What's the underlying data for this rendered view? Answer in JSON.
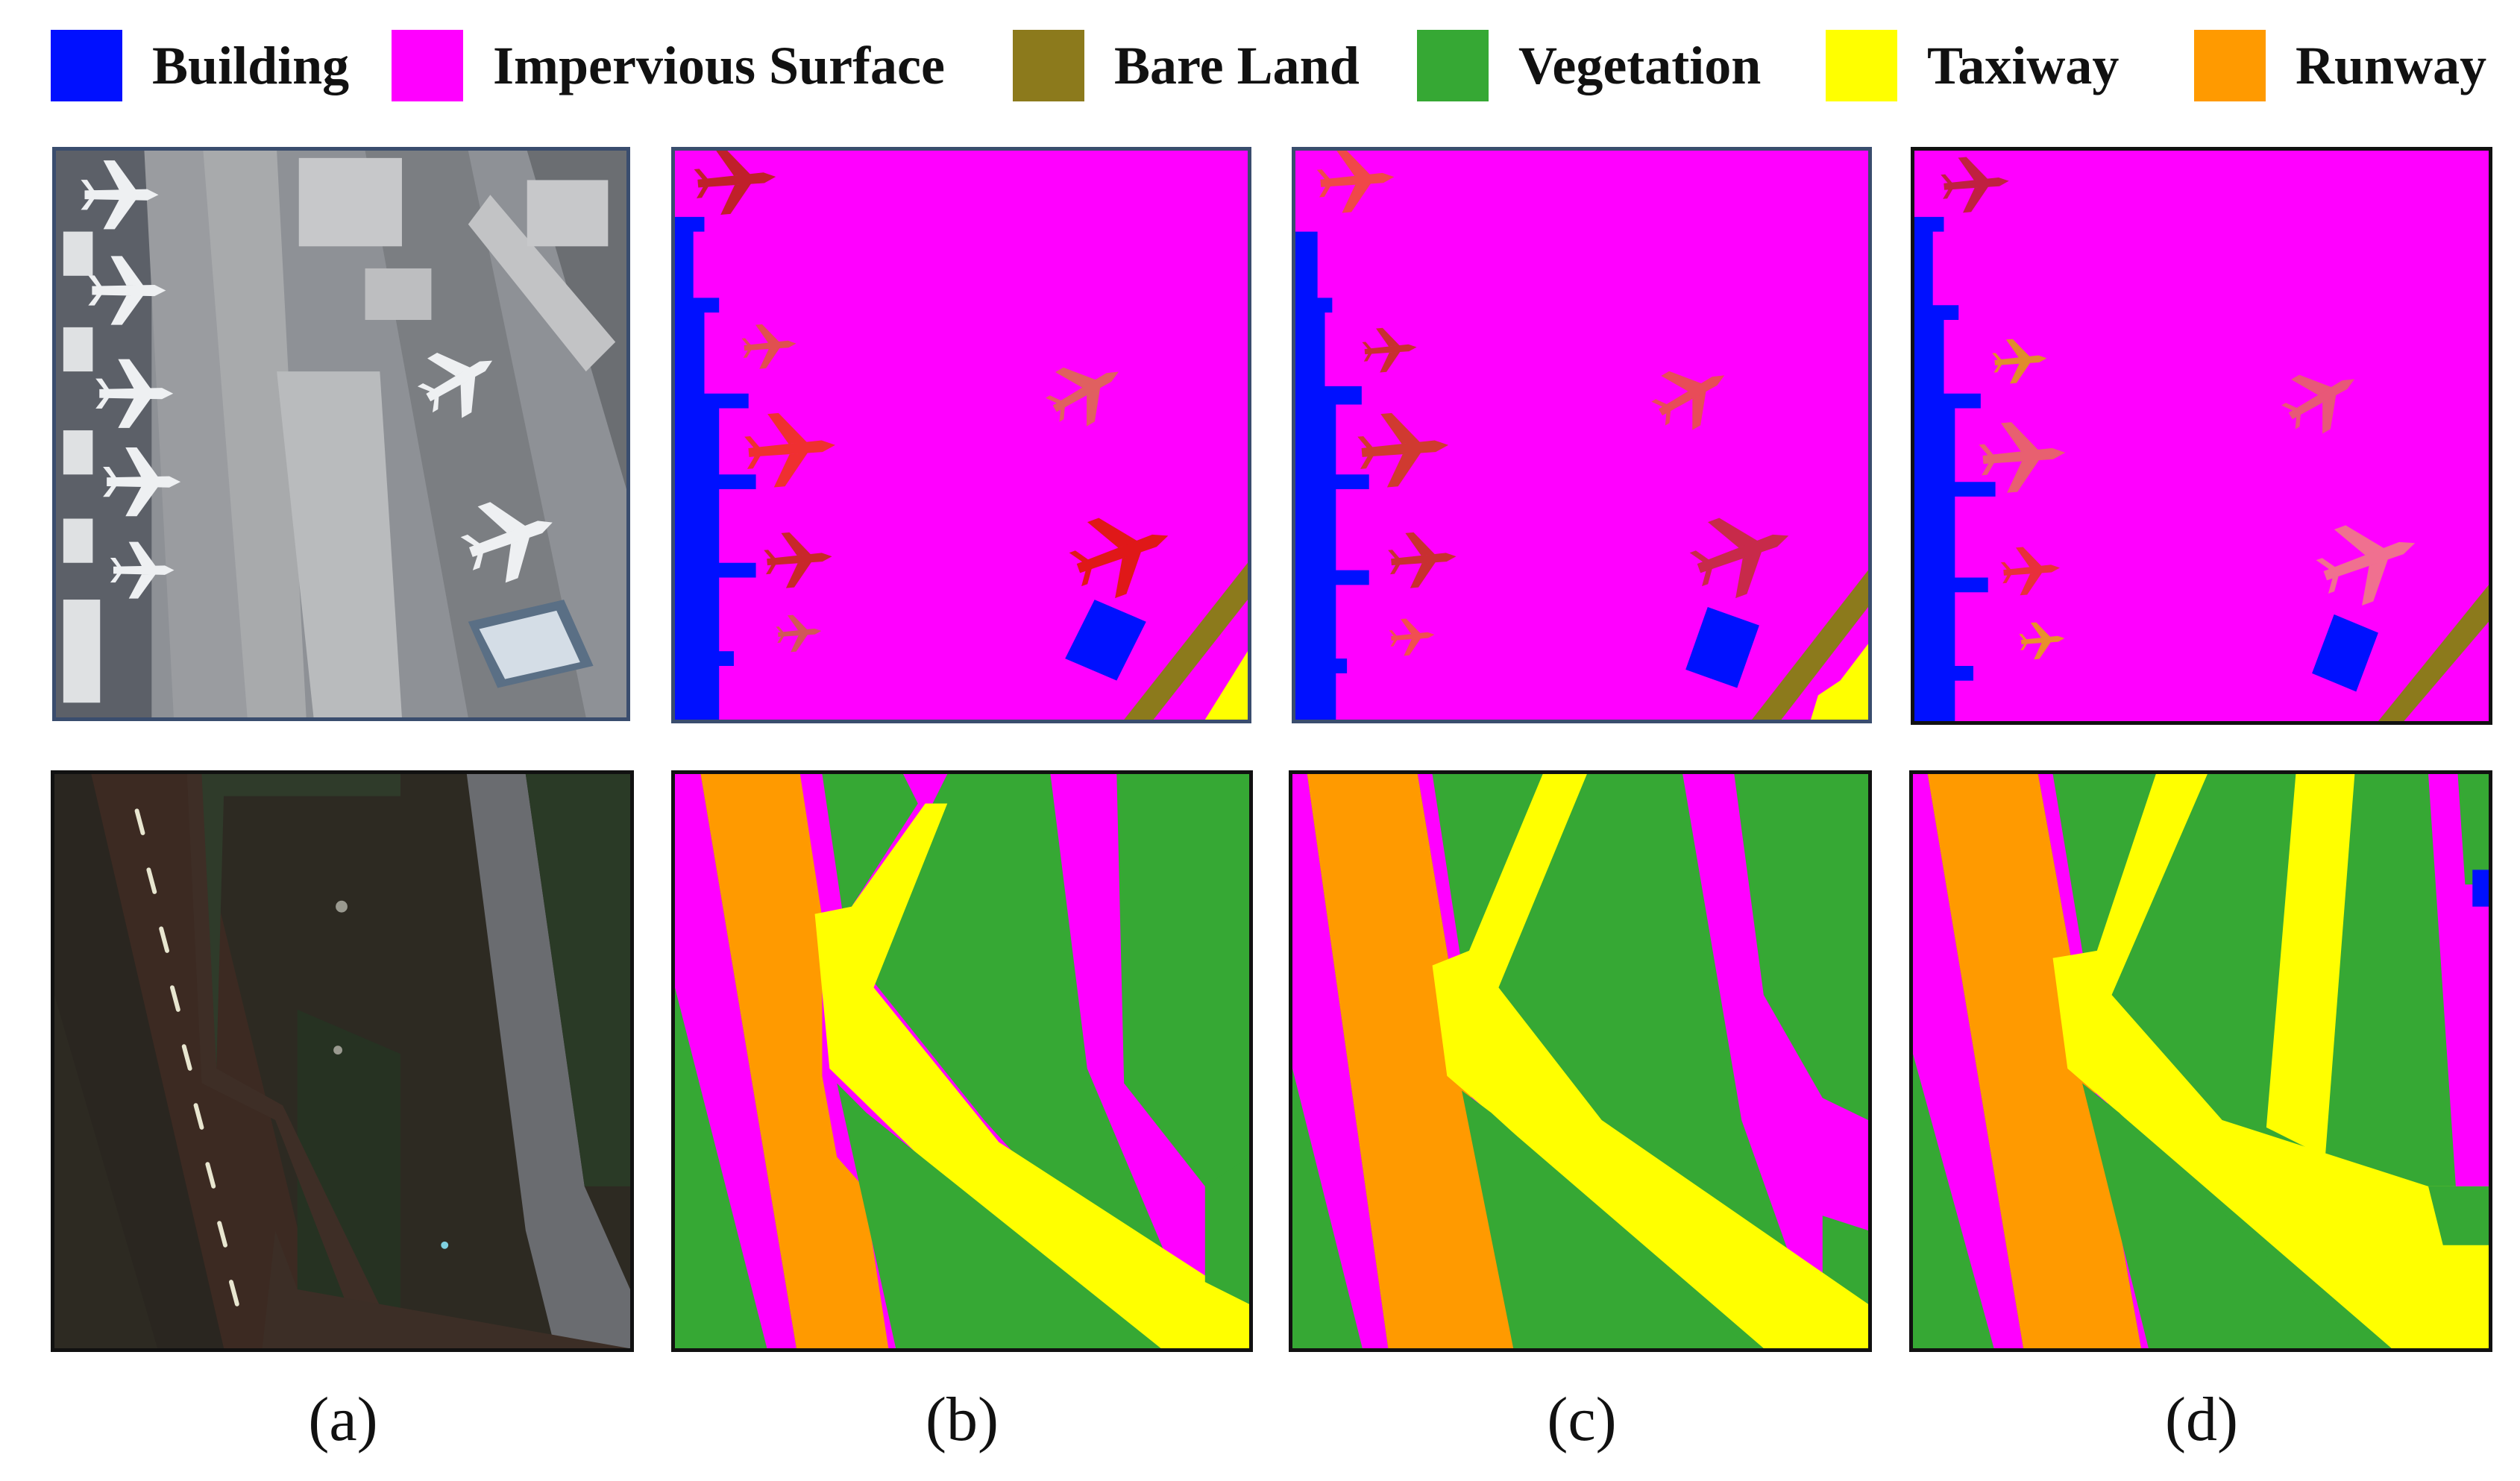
{
  "legend": [
    {
      "label": "Building",
      "color": "#0010ff"
    },
    {
      "label": "Impervious Surface",
      "color": "#ff00ff"
    },
    {
      "label": "Bare Land",
      "color": "#8c7a1c"
    },
    {
      "label": "Vegetation",
      "color": "#36a834"
    },
    {
      "label": "Taxiway",
      "color": "#ffff00"
    },
    {
      "label": "Runway",
      "color": "#ff9a00"
    }
  ],
  "captions": [
    "(a)",
    "(b)",
    "(c)",
    "(d)"
  ],
  "colors": {
    "building": "#0010ff",
    "impervious": "#ff00ff",
    "bare_land": "#8c7a1c",
    "vegetation": "#36a834",
    "taxiway": "#ffff00",
    "runway": "#ff9a00",
    "airplane": "#e03a3a"
  }
}
